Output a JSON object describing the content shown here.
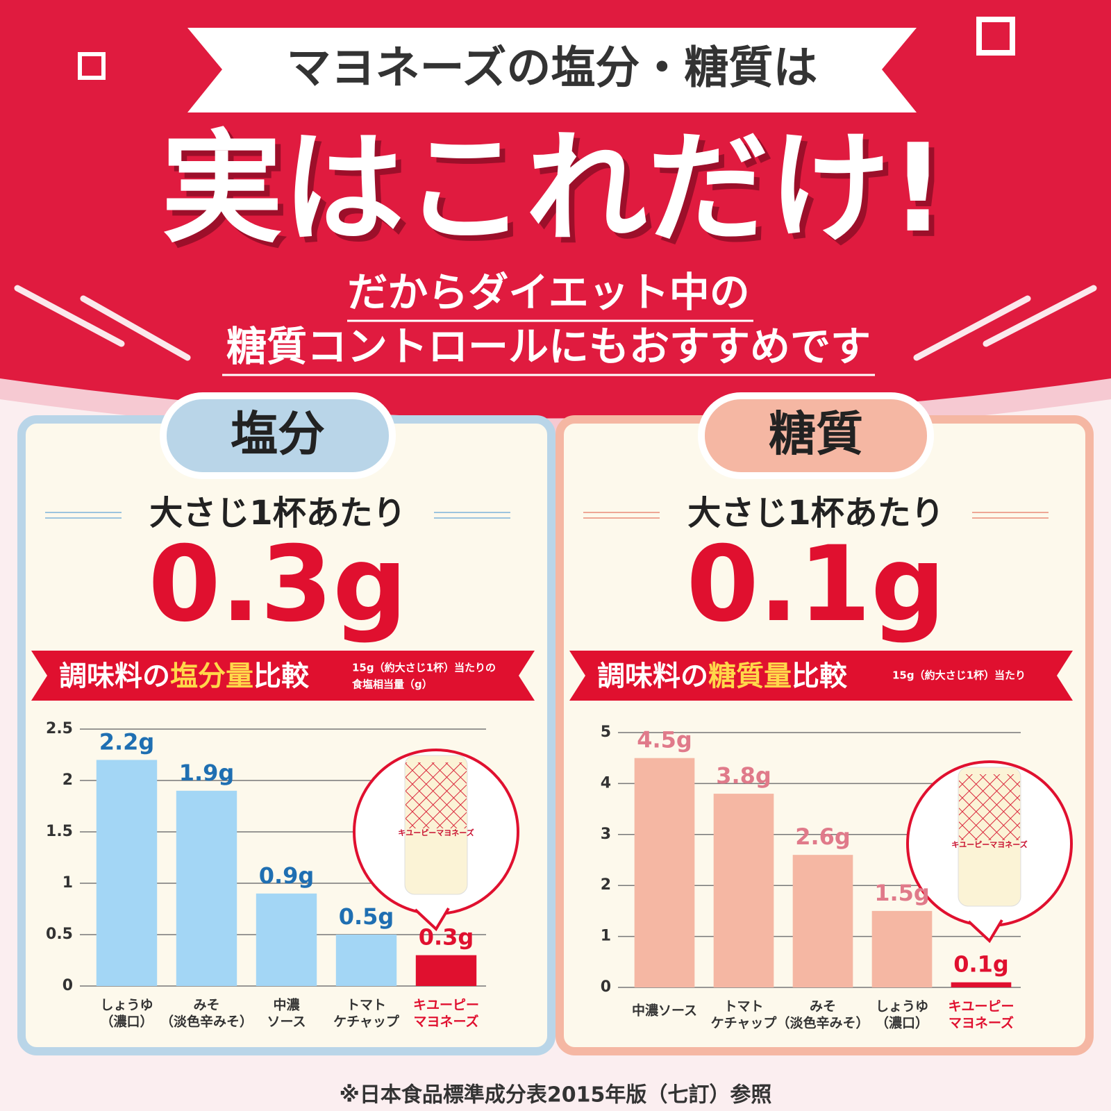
{
  "header": {
    "banner": "マヨネーズの塩分・糖質は",
    "headline": "実はこれだけ!",
    "sub_lines": [
      "だからダイエット中の",
      "糖質コントロールにもおすすめです"
    ]
  },
  "panels": [
    {
      "tab": "塩分",
      "per": "大さじ1杯あたり",
      "amount": "0.3g"
    },
    {
      "tab": "糖質",
      "per": "大さじ1杯あたり",
      "amount": "0.1g"
    }
  ],
  "bottle_label": "キユーピーマヨネーズ",
  "chart_data": [
    {
      "type": "bar",
      "title": [
        "調味料の",
        "塩分量",
        "比較"
      ],
      "subtitle": [
        "15g（約大さじ1杯）当たりの",
        "食塩相当量（g）"
      ],
      "categories": [
        [
          "しょうゆ",
          "（濃口）"
        ],
        [
          "みそ",
          "（淡色辛みそ）"
        ],
        [
          "中濃",
          "ソース"
        ],
        [
          "トマト",
          "ケチャップ"
        ],
        [
          "キユーピー",
          "マヨネーズ"
        ]
      ],
      "values": [
        2.2,
        1.9,
        0.9,
        0.5,
        0.3
      ],
      "value_labels": [
        "2.2g",
        "1.9g",
        "0.9g",
        "0.5g",
        "0.3g"
      ],
      "colors": [
        "#a3d6f5",
        "#a3d6f5",
        "#a3d6f5",
        "#a3d6f5",
        "#e0102f"
      ],
      "label_colors": [
        "#1f6fb2",
        "#1f6fb2",
        "#1f6fb2",
        "#1f6fb2",
        "#e0102f"
      ],
      "category_colors": [
        "#333333",
        "#333333",
        "#333333",
        "#333333",
        "#e0102f"
      ],
      "ylim": [
        0,
        2.5
      ],
      "yticks": [
        0,
        0.5,
        1,
        1.5,
        2,
        2.5
      ],
      "grid": true
    },
    {
      "type": "bar",
      "title": [
        "調味料の",
        "糖質量",
        "比較"
      ],
      "subtitle": [
        "15g（約大さじ1杯）当たり"
      ],
      "categories": [
        [
          "中濃ソース"
        ],
        [
          "トマト",
          "ケチャップ"
        ],
        [
          "みそ",
          "（淡色辛みそ）"
        ],
        [
          "しょうゆ",
          "（濃口）"
        ],
        [
          "キユーピー",
          "マヨネーズ"
        ]
      ],
      "values": [
        4.5,
        3.8,
        2.6,
        1.5,
        0.1
      ],
      "value_labels": [
        "4.5g",
        "3.8g",
        "2.6g",
        "1.5g",
        "0.1g"
      ],
      "colors": [
        "#f5b7a3",
        "#f5b7a3",
        "#f5b7a3",
        "#f5b7a3",
        "#e0102f"
      ],
      "label_colors": [
        "#e07a8a",
        "#e07a8a",
        "#e07a8a",
        "#e07a8a",
        "#e0102f"
      ],
      "category_colors": [
        "#333333",
        "#333333",
        "#333333",
        "#333333",
        "#e0102f"
      ],
      "ylim": [
        0,
        5
      ],
      "yticks": [
        0,
        1,
        2,
        3,
        4,
        5
      ],
      "grid": true
    }
  ],
  "footnote": "※日本食品標準成分表2015年版（七訂）参照"
}
